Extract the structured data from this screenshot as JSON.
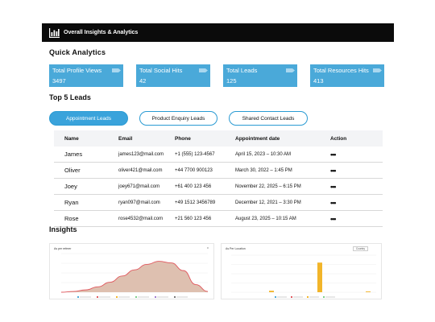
{
  "app": {
    "title": "Overall Insights & Analytics"
  },
  "quick": {
    "heading": "Quick  Analytics",
    "cards": [
      {
        "label": "Total Profile Views",
        "value": "3497"
      },
      {
        "label": "Total Social Hits",
        "value": "42"
      },
      {
        "label": "Total Leads",
        "value": "125"
      },
      {
        "label": "Total Resources Hits",
        "value": "413"
      }
    ]
  },
  "leads": {
    "heading": "Top 5  Leads",
    "tabs": [
      "Appointment Leads",
      "Product Enquiry Leads",
      "Shared Contact Leads"
    ],
    "active_tab": 0,
    "columns": [
      "Name",
      "Email",
      "Phone",
      "Appointment date",
      "Action"
    ],
    "rows": [
      {
        "name": "James",
        "email": "james123@mail.com",
        "phone": "+1 (555) 123-4567",
        "date": "April 15, 2023 – 10:30 AM",
        "action": "•••"
      },
      {
        "name": "Oliver",
        "email": "oliver421@mail.com",
        "phone": "+44 7700 900123",
        "date": "March 30, 2022 – 1:45 PM",
        "action": "•••"
      },
      {
        "name": "Joey",
        "email": "joey671@mail.com",
        "phone": "+61 400 123 456",
        "date": "November 22, 2025 – 6:15 PM",
        "action": "•••"
      },
      {
        "name": "Ryan",
        "email": "ryan097@mail.com",
        "phone": "+49 1512 3456789",
        "date": "December 12, 2021 – 3:30 PM",
        "action": "•••"
      },
      {
        "name": "Rose",
        "email": "rose4532@mail.com",
        "phone": "+21 560 123 456",
        "date": "August 23, 2025 – 10:15 AM",
        "action": "•••"
      }
    ]
  },
  "insights": {
    "heading": "Insights",
    "left_title": "As per referer",
    "right_title": "As Per Location",
    "right_dropdown": "Country",
    "left_menu": "≡"
  },
  "colors": {
    "topbar": "#0b0b0b",
    "card": "#4aa9d9",
    "tab_border": "#2a9bd3",
    "tab_active": "#3aa3db",
    "area_line": "#e0585e",
    "area_fill": "#d8b5a2",
    "bar": "#f2b52a"
  },
  "icons": {
    "logo": "bar-chart-icon",
    "card": "tag-arrow-icon",
    "action": "more-dots-icon"
  },
  "chart_data": [
    {
      "type": "area",
      "title": "As per referer",
      "x": [
        0,
        1,
        2,
        3,
        4,
        5,
        6,
        7,
        8,
        9,
        10,
        11,
        12
      ],
      "series": [
        {
          "values": [
            0,
            2,
            6,
            14,
            26,
            42,
            58,
            72,
            80,
            76,
            56,
            20,
            2
          ]
        }
      ],
      "ylim": [
        0,
        100
      ],
      "grid": true,
      "legend": "bottom"
    },
    {
      "type": "bar",
      "title": "As Per Location",
      "series": [
        {
          "values": [
            0,
            0,
            2,
            0,
            0,
            40,
            0,
            0,
            1
          ]
        }
      ],
      "ylim": [
        0,
        50
      ],
      "grid": true,
      "legend": "bottom"
    }
  ]
}
